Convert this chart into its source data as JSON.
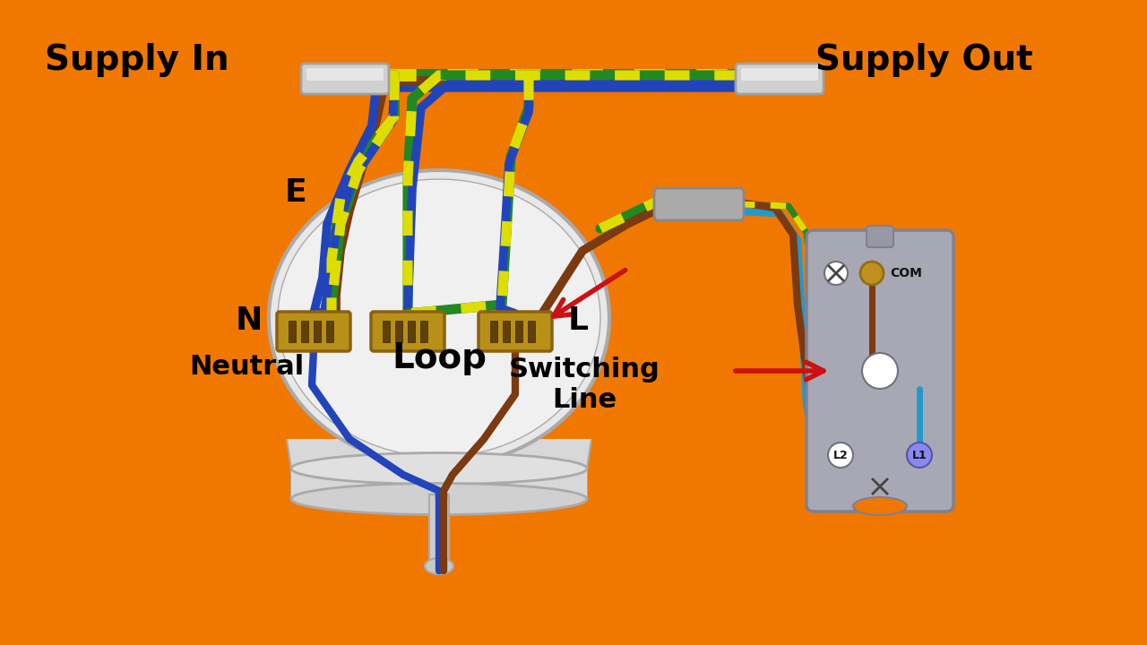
{
  "bg_color": "#F07800",
  "supply_in_text": "Supply In",
  "supply_out_text": "Supply Out",
  "label_E": "E",
  "label_N": "N",
  "label_Neutral": "Neutral",
  "label_Loop": "Loop",
  "label_L": "L",
  "label_SwitchingLine": "Switching\nLine",
  "label_COM": "COM",
  "label_L1": "L1",
  "label_L2": "L2",
  "C_GRN": "#228822",
  "C_YEL": "#DDDD00",
  "C_BLU": "#2244BB",
  "C_BRN": "#7B3A10",
  "C_CYN": "#2299CC",
  "conn_color": "#B89018",
  "conn_dark": "#604008",
  "rose_color": "#E8E8E8",
  "rose_edge": "#AAAAAA",
  "fuse_color": "#CCCCCC",
  "switch_color": "#A8A8B4",
  "text_color": "#000000",
  "arrow_color": "#CC1111",
  "bold_size": 28,
  "label_size": 22,
  "wire_lw": 7
}
